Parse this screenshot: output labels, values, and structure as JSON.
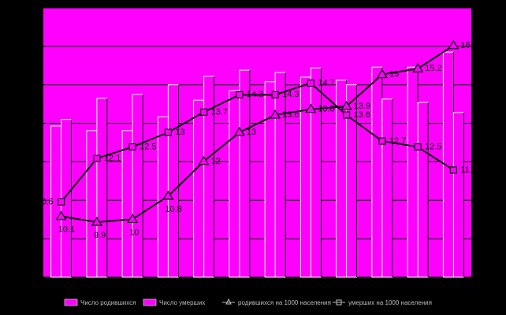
{
  "chart_data": {
    "type": "bar_line",
    "series": [
      {
        "name": "Число родившихся",
        "kind": "bar",
        "color": "#ff00ff",
        "values": [
          39.3,
          38.1,
          38.1,
          41.7,
          46,
          48.5,
          50.8,
          52,
          51.2,
          54.6,
          54.6,
          58.5
        ]
      },
      {
        "name": "Число умерших",
        "kind": "bar",
        "color": "#ff00ff",
        "values": [
          41,
          46.5,
          47.5,
          50,
          52.2,
          53.8,
          53.2,
          54.4,
          50,
          46.3,
          45.4,
          42.8
        ]
      },
      {
        "name": "родившихся на 1000 населения",
        "kind": "line",
        "marker": "triangle",
        "axis": "y2",
        "color": "#000000",
        "values": [
          10.1,
          9.9,
          10,
          10.8,
          12,
          13,
          13.6,
          13.8,
          13.9,
          15,
          15.2,
          16
        ]
      },
      {
        "name": "умерших на 1000 населения",
        "kind": "line",
        "marker": "square",
        "axis": "y2",
        "color": "#000000",
        "values": [
          10.6,
          12.1,
          12.5,
          13,
          13.7,
          14.3,
          14.3,
          14.7,
          13.6,
          12.7,
          12.5,
          11.7
        ]
      }
    ],
    "ylim": [
      0,
      70
    ],
    "yticks": [
      0,
      10,
      20,
      30,
      40,
      50,
      60,
      70
    ],
    "grid": true,
    "y2lim": [
      8,
      17.3
    ],
    "background": "#ff00ff",
    "legend": "bottom"
  }
}
